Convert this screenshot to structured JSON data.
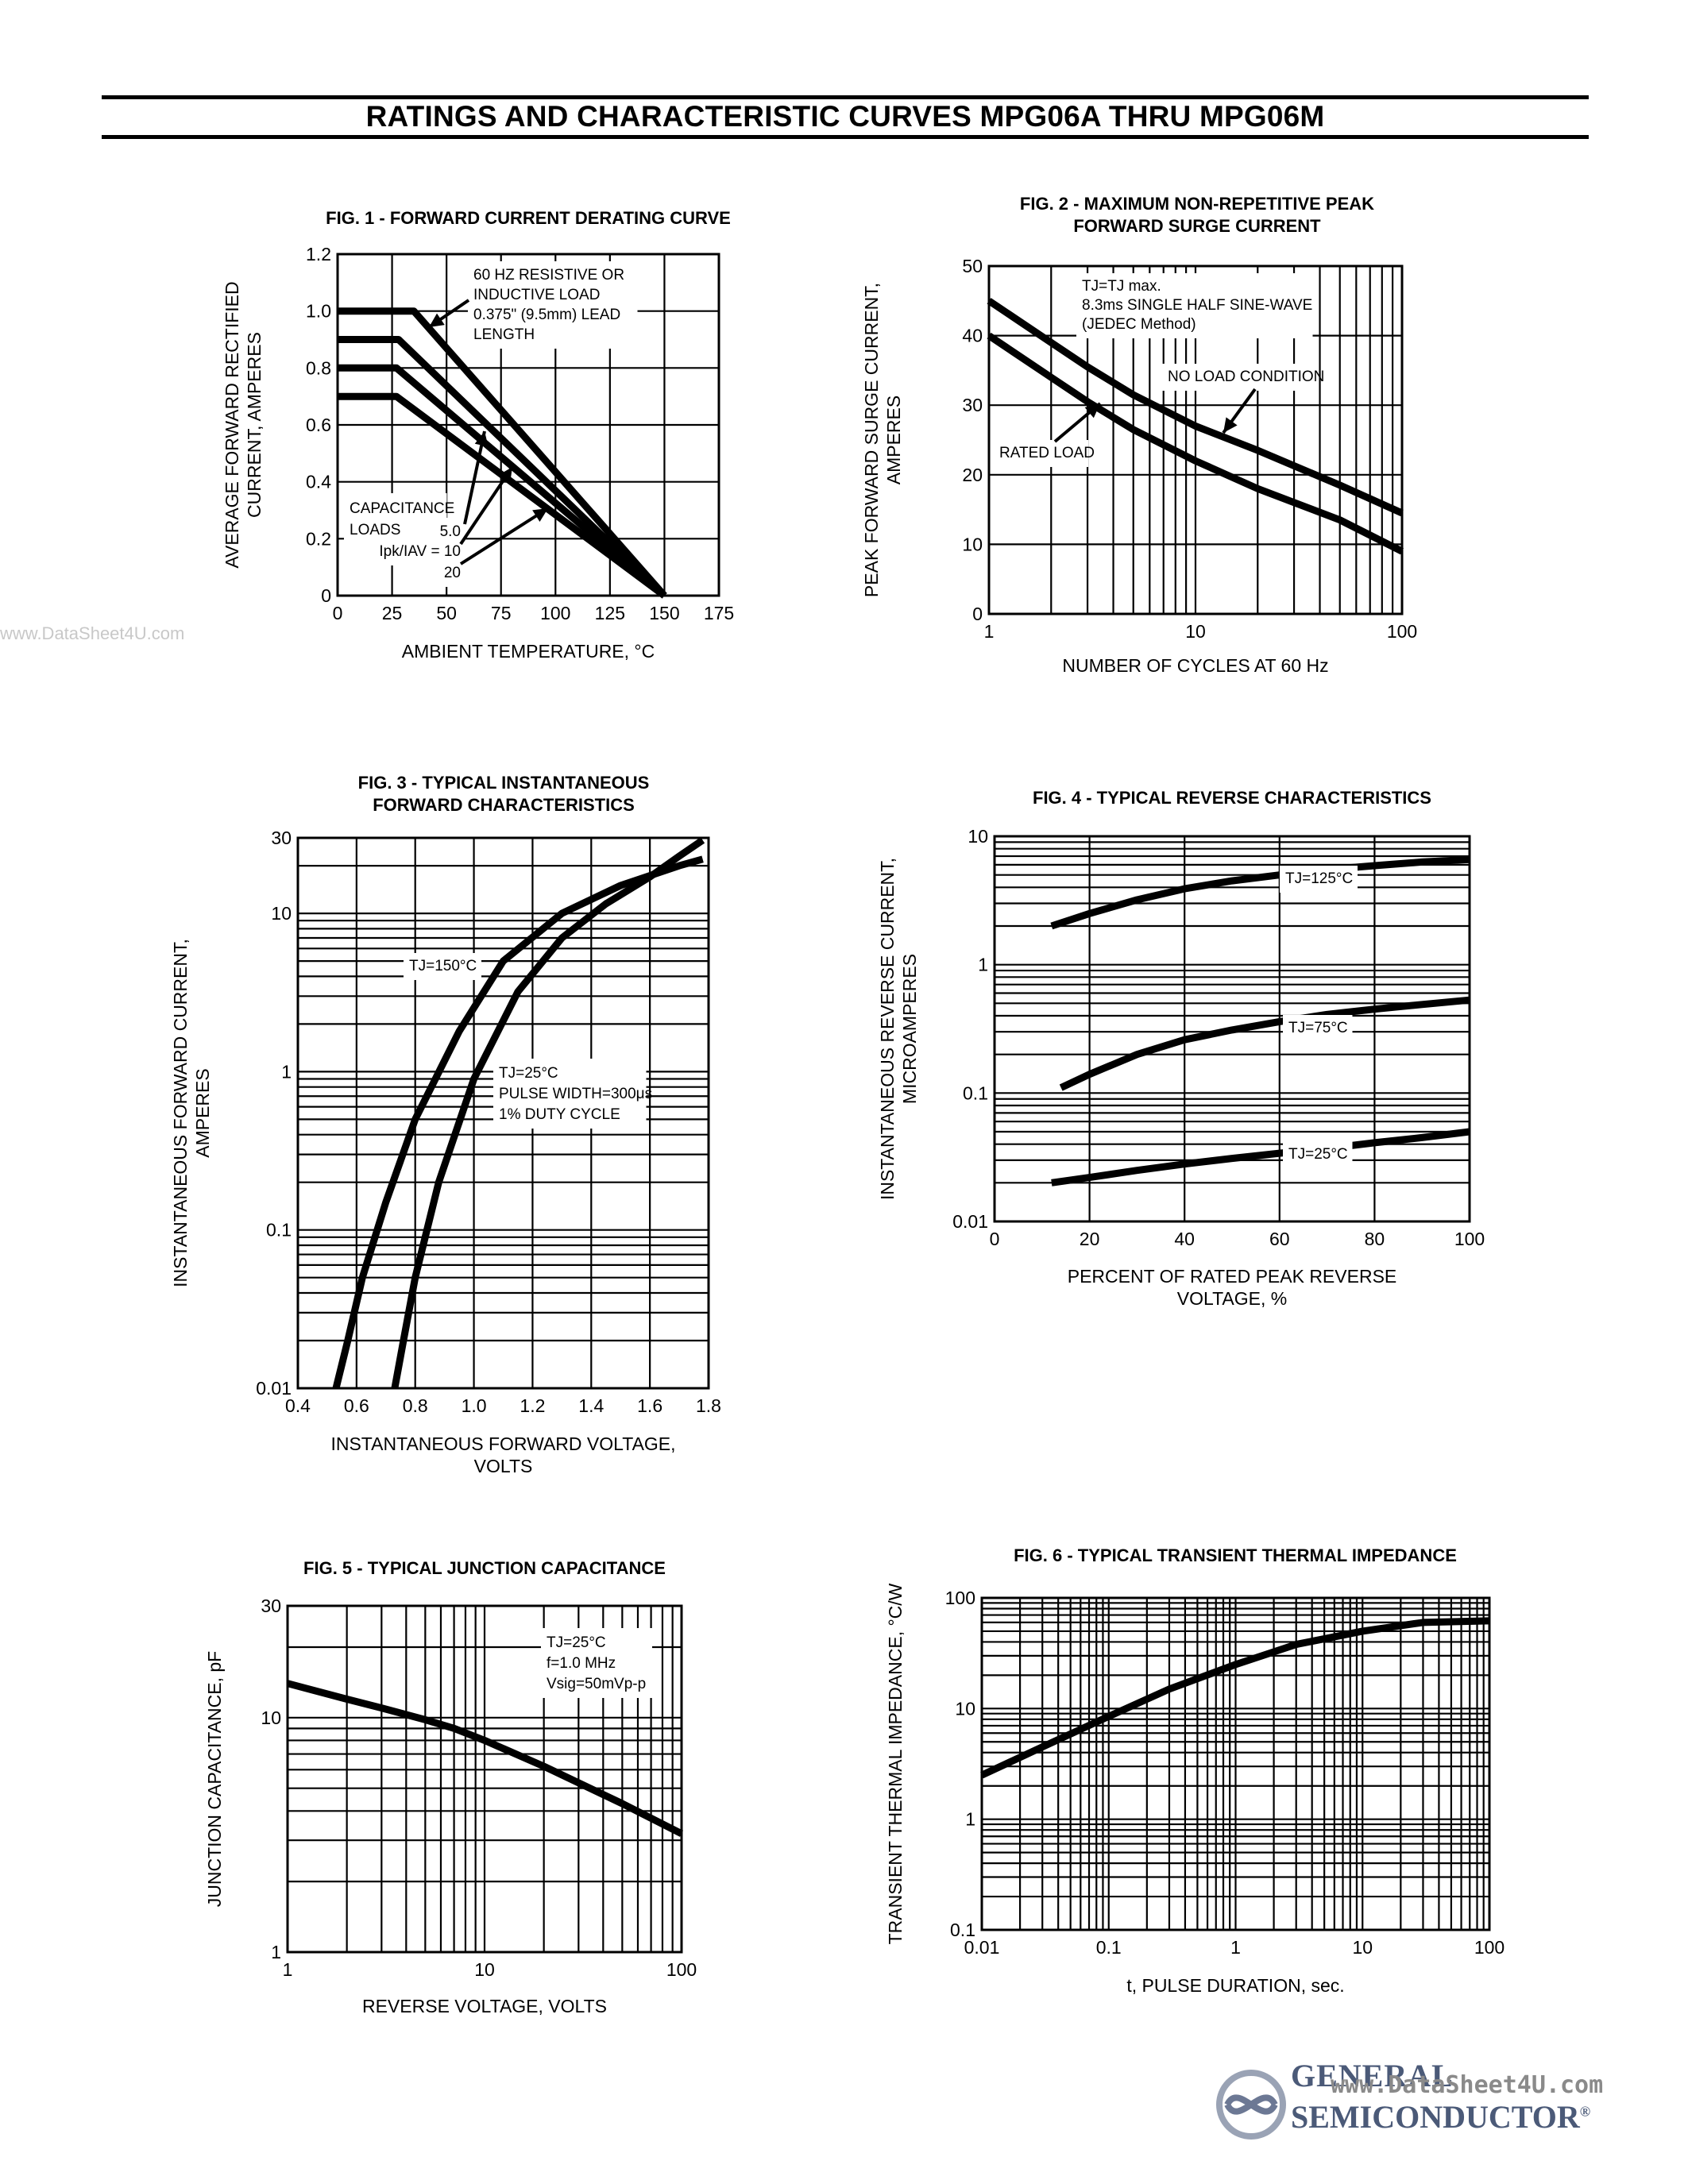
{
  "page": {
    "title": "RATINGS AND CHARACTERISTIC CURVES MPG06A THRU MPG06M",
    "watermark_left": "www.DataSheet4U.com",
    "brand_line1": "GENERAL",
    "brand_line2": "SEMICONDUCTOR",
    "brand_url": "www.DataSheet4U.com",
    "brand_registered": "®"
  },
  "chart_data": [
    {
      "id": "fig1",
      "type": "line",
      "title": "FIG. 1 - FORWARD CURRENT DERATING CURVE",
      "xlabel": "AMBIENT TEMPERATURE, °C",
      "ylabel": [
        "AVERAGE FORWARD RECTIFIED",
        "CURRENT, AMPERES"
      ],
      "xscale": "linear",
      "yscale": "linear",
      "xlim": [
        0,
        175
      ],
      "ylim": [
        0,
        1.2
      ],
      "xticks": [
        0,
        25,
        50,
        75,
        100,
        125,
        150,
        175
      ],
      "yticks": [
        0,
        0.2,
        0.4,
        0.6,
        0.8,
        1.0,
        1.2
      ],
      "xtick_labels": [
        "0",
        "25",
        "50",
        "75",
        "100",
        "125",
        "150",
        "175"
      ],
      "ytick_labels": [
        "0",
        "0.2",
        "0.4",
        "0.6",
        "0.8",
        "1.0",
        "1.2"
      ],
      "grid": true,
      "series": [
        {
          "name": "60 Hz resistive or inductive load",
          "x": [
            0,
            35,
            150
          ],
          "y": [
            1.0,
            1.0,
            0
          ]
        },
        {
          "name": "Capacitance load 5.0",
          "x": [
            0,
            28,
            150
          ],
          "y": [
            0.9,
            0.9,
            0
          ]
        },
        {
          "name": "Capacitance load 10",
          "x": [
            0,
            27,
            150
          ],
          "y": [
            0.8,
            0.8,
            0
          ]
        },
        {
          "name": "Capacitance load 20",
          "x": [
            0,
            27,
            150
          ],
          "y": [
            0.7,
            0.7,
            0
          ]
        }
      ],
      "annotations": [
        "60 HZ RESISTIVE OR",
        "INDUCTIVE LOAD",
        "0.375\" (9.5mm) LEAD",
        "LENGTH",
        "CAPACITANCE",
        "LOADS",
        "5.0",
        "Ipk/IAV = 10",
        "20"
      ]
    },
    {
      "id": "fig2",
      "type": "line",
      "title": [
        "FIG. 2 - MAXIMUM NON-REPETITIVE PEAK",
        "FORWARD SURGE CURRENT"
      ],
      "xlabel": "NUMBER OF CYCLES AT 60 Hz",
      "ylabel": [
        "PEAK FORWARD SURGE CURRENT,",
        "AMPERES"
      ],
      "xscale": "log",
      "yscale": "linear",
      "xlim": [
        1,
        100
      ],
      "ylim": [
        0,
        50
      ],
      "xticks": [
        1,
        10,
        100
      ],
      "yticks": [
        0,
        10,
        20,
        30,
        40,
        50
      ],
      "xtick_labels": [
        "1",
        "10",
        "100"
      ],
      "ytick_labels": [
        "0",
        "10",
        "20",
        "30",
        "40",
        "50"
      ],
      "grid": true,
      "series": [
        {
          "name": "NO LOAD CONDITION",
          "x": [
            1,
            2,
            3,
            5,
            10,
            20,
            50,
            100
          ],
          "y": [
            45,
            39,
            35.5,
            31.5,
            27,
            23.5,
            18.5,
            14.5
          ]
        },
        {
          "name": "RATED LOAD",
          "x": [
            1,
            2,
            3,
            5,
            10,
            20,
            50,
            100
          ],
          "y": [
            40,
            34,
            30.5,
            26.5,
            22,
            18,
            13.5,
            9
          ]
        }
      ],
      "annotations": [
        "TJ=TJ max.",
        "8.3ms SINGLE HALF SINE-WAVE",
        "(JEDEC Method)",
        "NO LOAD CONDITION",
        "RATED LOAD"
      ]
    },
    {
      "id": "fig3",
      "type": "line",
      "title": [
        "FIG. 3 - TYPICAL INSTANTANEOUS",
        "FORWARD CHARACTERISTICS"
      ],
      "xlabel": [
        "INSTANTANEOUS FORWARD VOLTAGE,",
        "VOLTS"
      ],
      "ylabel": [
        "INSTANTANEOUS FORWARD CURRENT,",
        "AMPERES"
      ],
      "xscale": "linear",
      "yscale": "log",
      "xlim": [
        0.4,
        1.8
      ],
      "ylim": [
        0.01,
        30
      ],
      "xticks": [
        0.4,
        0.6,
        0.8,
        1.0,
        1.2,
        1.4,
        1.6,
        1.8
      ],
      "yticks": [
        0.01,
        0.1,
        1,
        10,
        30
      ],
      "xtick_labels": [
        "0.4",
        "0.6",
        "0.8",
        "1.0",
        "1.2",
        "1.4",
        "1.6",
        "1.8"
      ],
      "ytick_labels": [
        "0.01",
        "0.1",
        "1",
        "10",
        "30"
      ],
      "grid": true,
      "series": [
        {
          "name": "TJ=150°C",
          "x": [
            0.53,
            0.57,
            0.62,
            0.7,
            0.8,
            0.95,
            1.1,
            1.3,
            1.5,
            1.7,
            1.78
          ],
          "y": [
            0.01,
            0.02,
            0.05,
            0.15,
            0.5,
            1.8,
            5,
            10,
            15,
            20,
            22
          ]
        },
        {
          "name": "TJ=25°C",
          "x": [
            0.73,
            0.76,
            0.8,
            0.88,
            1.0,
            1.15,
            1.3,
            1.45,
            1.6,
            1.7,
            1.78
          ],
          "y": [
            0.01,
            0.02,
            0.05,
            0.2,
            0.9,
            3.2,
            7,
            11.5,
            17,
            23,
            29
          ]
        }
      ],
      "annotations": [
        "TJ=150°C",
        "TJ=25°C",
        "PULSE WIDTH=300μs",
        "1% DUTY CYCLE"
      ]
    },
    {
      "id": "fig4",
      "type": "line",
      "title": "FIG. 4 - TYPICAL REVERSE CHARACTERISTICS",
      "xlabel": [
        "PERCENT OF RATED PEAK REVERSE",
        "VOLTAGE, %"
      ],
      "ylabel": [
        "INSTANTANEOUS REVERSE CURRENT,",
        "MICROAMPERES"
      ],
      "xscale": "linear",
      "yscale": "log",
      "xlim": [
        0,
        100
      ],
      "ylim": [
        0.01,
        10
      ],
      "xticks": [
        0,
        20,
        40,
        60,
        80,
        100
      ],
      "yticks": [
        0.01,
        0.1,
        1,
        10
      ],
      "xtick_labels": [
        "0",
        "20",
        "40",
        "60",
        "80",
        "100"
      ],
      "ytick_labels": [
        "0.01",
        "0.1",
        "1",
        "10"
      ],
      "grid": true,
      "series": [
        {
          "name": "TJ=125°C",
          "x": [
            12,
            20,
            30,
            40,
            50,
            60,
            70,
            80,
            90,
            100
          ],
          "y": [
            2.0,
            2.5,
            3.2,
            3.9,
            4.5,
            5.0,
            5.5,
            5.9,
            6.3,
            6.6
          ]
        },
        {
          "name": "TJ=75°C",
          "x": [
            14,
            20,
            30,
            40,
            50,
            60,
            70,
            80,
            90,
            100
          ],
          "y": [
            0.11,
            0.14,
            0.2,
            0.26,
            0.31,
            0.36,
            0.41,
            0.45,
            0.49,
            0.53
          ]
        },
        {
          "name": "TJ=25°C",
          "x": [
            12,
            20,
            30,
            40,
            50,
            60,
            70,
            80,
            90,
            100
          ],
          "y": [
            0.02,
            0.022,
            0.025,
            0.028,
            0.031,
            0.034,
            0.037,
            0.041,
            0.045,
            0.05
          ]
        }
      ],
      "annotations": [
        "TJ=125°C",
        "TJ=75°C",
        "TJ=25°C"
      ]
    },
    {
      "id": "fig5",
      "type": "line",
      "title": "FIG. 5 - TYPICAL JUNCTION CAPACITANCE",
      "xlabel": "REVERSE VOLTAGE, VOLTS",
      "ylabel": [
        "JUNCTION CAPACITANCE, pF"
      ],
      "xscale": "log",
      "yscale": "log",
      "xlim": [
        1,
        100
      ],
      "ylim": [
        1,
        30
      ],
      "xticks": [
        1,
        10,
        100
      ],
      "yticks": [
        1,
        10,
        30
      ],
      "xtick_labels": [
        "1",
        "10",
        "100"
      ],
      "ytick_labels": [
        "1",
        "10",
        "30"
      ],
      "grid": true,
      "series": [
        {
          "name": "TJ=25°C",
          "x": [
            1,
            2,
            3,
            5,
            7,
            10,
            20,
            50,
            100
          ],
          "y": [
            14,
            12,
            11,
            9.8,
            9.0,
            8.0,
            6.2,
            4.3,
            3.2
          ]
        }
      ],
      "annotations": [
        "TJ=25°C",
        "f=1.0 MHz",
        "Vsig=50mVp-p"
      ]
    },
    {
      "id": "fig6",
      "type": "line",
      "title": "FIG. 6 - TYPICAL TRANSIENT THERMAL IMPEDANCE",
      "xlabel": "t, PULSE DURATION, sec.",
      "ylabel": [
        "TRANSIENT THERMAL IMPEDANCE, °C/W"
      ],
      "xscale": "log",
      "yscale": "log",
      "xlim": [
        0.01,
        100
      ],
      "ylim": [
        0.1,
        100
      ],
      "xticks": [
        0.01,
        0.1,
        1,
        10,
        100
      ],
      "yticks": [
        0.1,
        1,
        10,
        100
      ],
      "xtick_labels": [
        "0.01",
        "0.1",
        "1",
        "10",
        "100"
      ],
      "ytick_labels": [
        "0.1",
        "1",
        "10",
        "100"
      ],
      "grid": true,
      "series": [
        {
          "name": "Transient thermal impedance",
          "x": [
            0.01,
            0.03,
            0.1,
            0.3,
            1,
            3,
            10,
            30,
            100
          ],
          "y": [
            2.5,
            4.5,
            8.5,
            15,
            25,
            38,
            50,
            60,
            62
          ]
        }
      ],
      "annotations": []
    }
  ]
}
